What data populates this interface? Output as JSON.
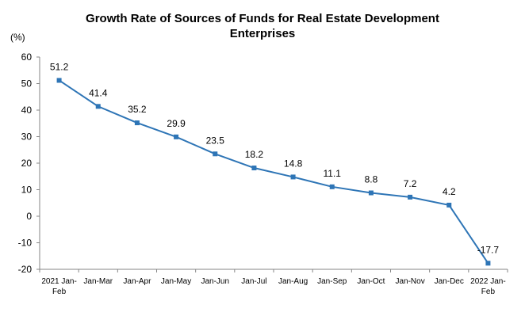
{
  "chart_data": {
    "type": "line",
    "title_line1": "Growth Rate of Sources of Funds for Real Estate Development",
    "title_line2": "Enterprises",
    "unit_label": "(%)",
    "categories": [
      [
        "2021 Jan-",
        "Feb"
      ],
      [
        "Jan-Mar"
      ],
      [
        "Jan-Apr"
      ],
      [
        "Jan-May"
      ],
      [
        "Jan-Jun"
      ],
      [
        "Jan-Jul"
      ],
      [
        "Jan-Aug"
      ],
      [
        "Jan-Sep"
      ],
      [
        "Jan-Oct"
      ],
      [
        "Jan-Nov"
      ],
      [
        "Jan-Dec"
      ],
      [
        "2022 Jan-",
        "Feb"
      ]
    ],
    "values": [
      51.2,
      41.4,
      35.2,
      29.9,
      23.5,
      18.2,
      14.8,
      11.1,
      8.8,
      7.2,
      4.2,
      -17.7
    ],
    "data_labels": [
      "51.2",
      "41.4",
      "35.2",
      "29.9",
      "23.5",
      "18.2",
      "14.8",
      "11.1",
      "8.8",
      "7.2",
      "4.2",
      "-17.7"
    ],
    "ylim": [
      -20,
      60
    ],
    "yticks": [
      -20,
      -10,
      0,
      10,
      20,
      30,
      40,
      50,
      60
    ],
    "grid": false,
    "line_color": "#2e75b6",
    "marker_color": "#2e75b6"
  }
}
